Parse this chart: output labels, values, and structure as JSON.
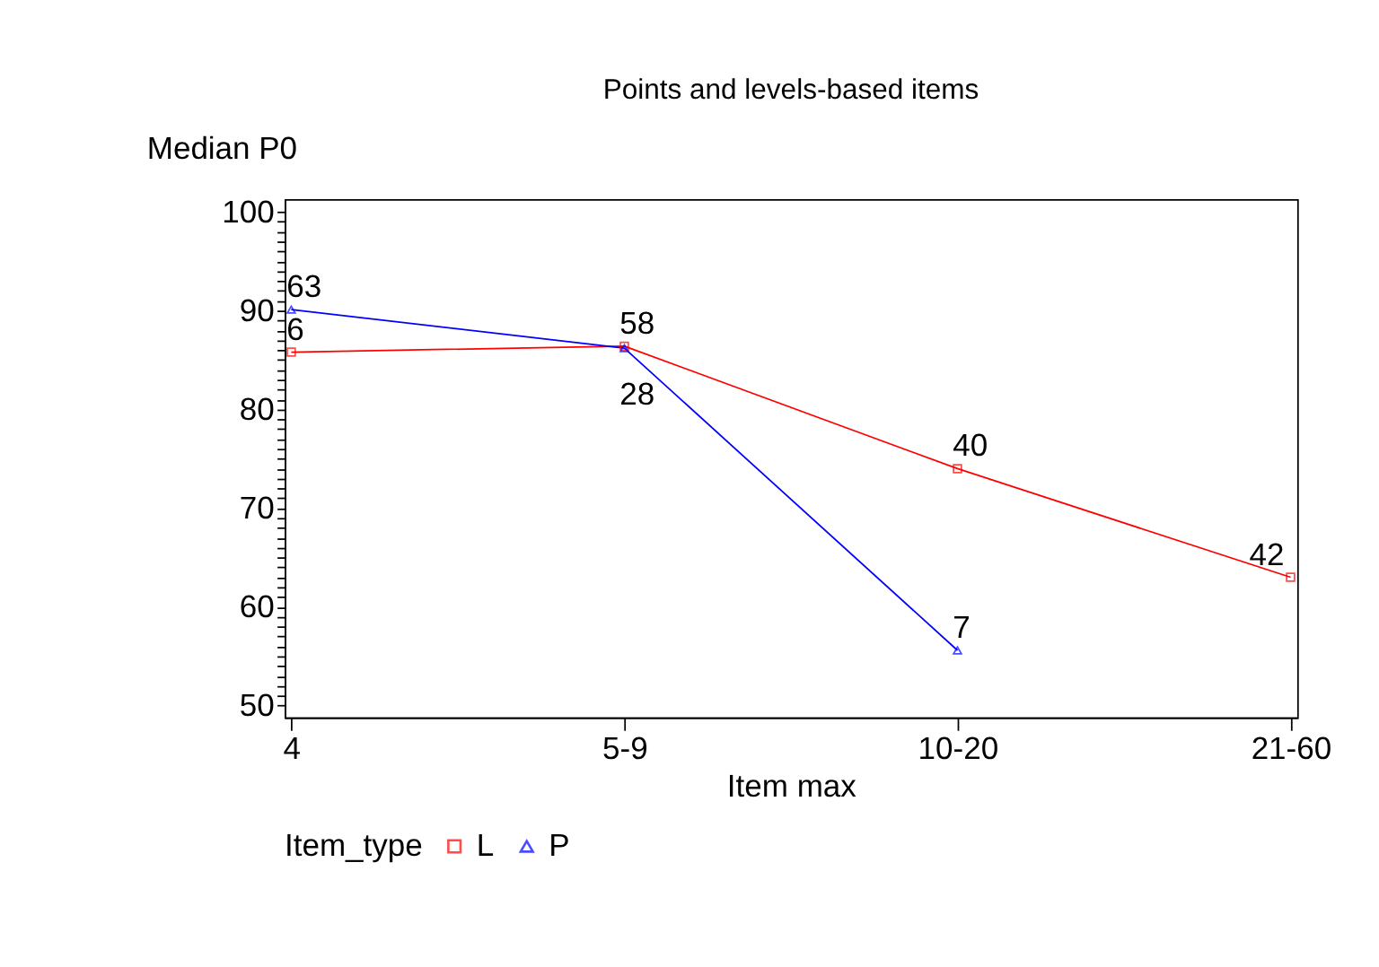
{
  "chart_data": {
    "type": "line",
    "title": "Points and levels-based items",
    "xlabel": "Item max",
    "ylabel": "Median P0",
    "legend_title": "Item_type",
    "categories": [
      "4",
      "5-9",
      "10-20",
      "21-60"
    ],
    "series": [
      {
        "name": "L",
        "color": "#ff0000",
        "marker": "square",
        "values": [
          85.8,
          86.4,
          74.0,
          63.0
        ]
      },
      {
        "name": "P",
        "color": "#0000ff",
        "marker": "triangle",
        "values": [
          90.1,
          86.2,
          55.6,
          null
        ]
      }
    ],
    "ylim": [
      48.8,
      101.3
    ],
    "yticks": [
      50,
      {
        "value": 51,
        "label": null
      },
      {
        "value": 52,
        "label": null
      },
      {
        "value": 53,
        "label": null
      },
      {
        "value": 54,
        "label": null
      },
      {
        "value": 55,
        "label": null
      },
      {
        "value": 56,
        "label": null
      },
      {
        "value": 57,
        "label": null
      },
      {
        "value": 58,
        "label": null
      },
      {
        "value": 59,
        "label": null
      },
      60,
      {
        "value": 61,
        "label": null
      },
      {
        "value": 62,
        "label": null
      },
      {
        "value": 63,
        "label": null
      },
      {
        "value": 64,
        "label": null
      },
      {
        "value": 65,
        "label": null
      },
      {
        "value": 66,
        "label": null
      },
      {
        "value": 67,
        "label": null
      },
      {
        "value": 68,
        "label": null
      },
      {
        "value": 69,
        "label": null
      },
      70,
      {
        "value": 71,
        "label": null
      },
      {
        "value": 72,
        "label": null
      },
      {
        "value": 73,
        "label": null
      },
      {
        "value": 74,
        "label": null
      },
      {
        "value": 75,
        "label": null
      },
      {
        "value": 76,
        "label": null
      },
      {
        "value": 77,
        "label": null
      },
      {
        "value": 78,
        "label": null
      },
      {
        "value": 79,
        "label": null
      },
      80,
      {
        "value": 81,
        "label": null
      },
      {
        "value": 82,
        "label": null
      },
      {
        "value": 83,
        "label": null
      },
      {
        "value": 84,
        "label": null
      },
      {
        "value": 85,
        "label": null
      },
      {
        "value": 86,
        "label": null
      },
      {
        "value": 87,
        "label": null
      },
      {
        "value": 88,
        "label": null
      },
      {
        "value": 89,
        "label": null
      },
      90,
      {
        "value": 91,
        "label": null
      },
      {
        "value": 92,
        "label": null
      },
      {
        "value": 93,
        "label": null
      },
      {
        "value": 94,
        "label": null
      },
      {
        "value": 95,
        "label": null
      },
      {
        "value": 96,
        "label": null
      },
      {
        "value": 97,
        "label": null
      },
      {
        "value": 98,
        "label": null
      },
      {
        "value": 99,
        "label": null
      },
      100
    ],
    "annotations": [
      {
        "text": "63",
        "x": "4",
        "y": 90.1
      },
      {
        "text": "6",
        "x": "4",
        "y": 85.8
      },
      {
        "text": "58",
        "x": "5-9",
        "y": 86.4
      },
      {
        "text": "28",
        "x": "5-9",
        "y": 86.2
      },
      {
        "text": "40",
        "x": "10-20",
        "y": 74.0
      },
      {
        "text": "7",
        "x": "10-20",
        "y": 55.6
      },
      {
        "text": "42",
        "x": "21-60",
        "y": 63.0
      }
    ],
    "grid": false,
    "legend": "bottom",
    "line_style": "solid"
  }
}
